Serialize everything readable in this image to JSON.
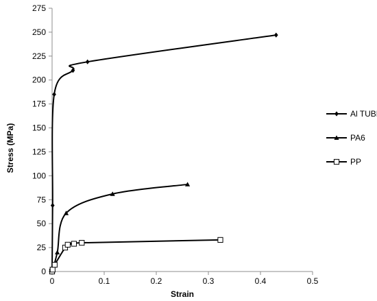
{
  "chart_data": {
    "type": "scatter",
    "title": "",
    "xlabel": "Strain",
    "ylabel": "Stress (MPa)",
    "xlim": [
      0,
      0.5
    ],
    "ylim": [
      0,
      275
    ],
    "x_ticks": [
      0,
      0.1,
      0.2,
      0.3,
      0.4,
      0.5
    ],
    "x_tick_labels": [
      "0",
      "0.1",
      "0.2",
      "0.3",
      "0.4",
      "0.5"
    ],
    "y_ticks": [
      0,
      25,
      50,
      75,
      100,
      125,
      150,
      175,
      200,
      225,
      250,
      275
    ],
    "y_tick_labels": [
      "0",
      "25",
      "50",
      "75",
      "100",
      "125",
      "150",
      "175",
      "200",
      "225",
      "250",
      "275"
    ],
    "grid": false,
    "legend_position": "right",
    "series": [
      {
        "name": "Al TUBE",
        "marker": "diamond",
        "color": "#000000",
        "points": [
          [
            0,
            0
          ],
          [
            0.001,
            69
          ],
          [
            0.004,
            185
          ],
          [
            0.04,
            210
          ],
          [
            0.068,
            219
          ],
          [
            0.43,
            247
          ]
        ]
      },
      {
        "name": "PA6",
        "marker": "triangle",
        "color": "#000000",
        "points": [
          [
            0,
            0
          ],
          [
            0.001,
            1
          ],
          [
            0.01,
            20
          ],
          [
            0.027,
            61
          ],
          [
            0.116,
            81
          ],
          [
            0.26,
            91
          ]
        ]
      },
      {
        "name": "PP",
        "marker": "open-square",
        "color": "#000000",
        "points": [
          [
            0,
            0
          ],
          [
            0.001,
            2
          ],
          [
            0.005,
            7
          ],
          [
            0.025,
            25
          ],
          [
            0.03,
            28
          ],
          [
            0.042,
            29
          ],
          [
            0.057,
            30
          ],
          [
            0.323,
            33
          ]
        ]
      }
    ]
  }
}
